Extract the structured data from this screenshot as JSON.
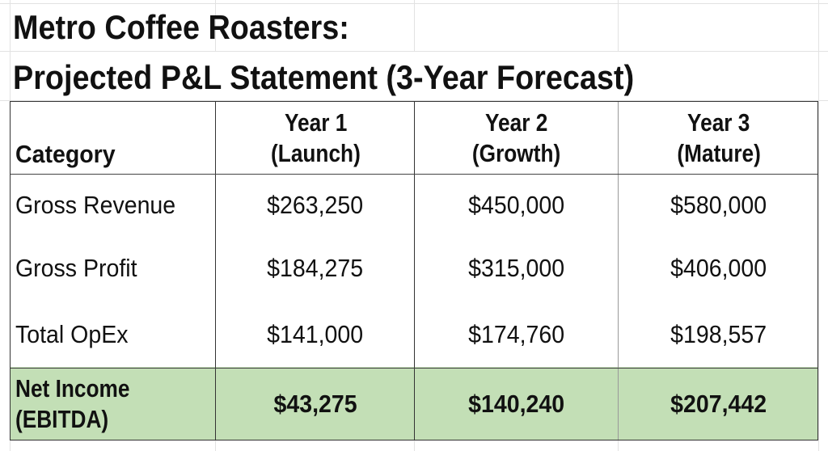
{
  "title_line1": "Metro Coffee Roasters:",
  "title_line2": "Projected P&L Statement (3-Year Forecast)",
  "colors": {
    "highlight_row": "#c3dfb6",
    "border": "#333333",
    "gridline": "#e2e2e2"
  },
  "table": {
    "headers": [
      {
        "line1": "Category",
        "line2": ""
      },
      {
        "line1": "Year 1",
        "line2": "(Launch)"
      },
      {
        "line1": "Year 2",
        "line2": "(Growth)"
      },
      {
        "line1": "Year 3",
        "line2": "(Mature)"
      }
    ],
    "rows": [
      {
        "category": "Gross Revenue",
        "values": [
          "$263,250",
          "$450,000",
          "$580,000"
        ]
      },
      {
        "category": "Gross Profit",
        "values": [
          "$184,275",
          "$315,000",
          "$406,000"
        ]
      },
      {
        "category": "Total OpEx",
        "values": [
          "$141,000",
          "$174,760",
          "$198,557"
        ]
      }
    ],
    "total_row": {
      "category_line1": "Net Income",
      "category_line2": "(EBITDA)",
      "values": [
        "$43,275",
        "$140,240",
        "$207,442"
      ]
    }
  }
}
